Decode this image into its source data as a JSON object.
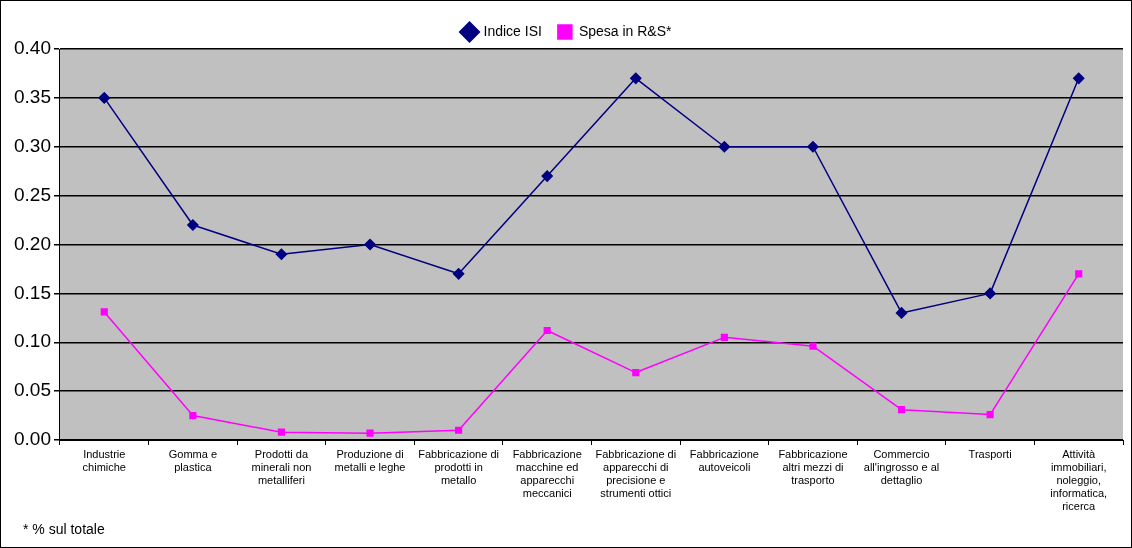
{
  "chart_data": {
    "type": "line",
    "categories": [
      "Industrie chimiche",
      "Gomma e plastica",
      "Prodotti da minerali non metalliferi",
      "Produzione di metalli e leghe",
      "Fabbricazione di prodotti in metallo",
      "Fabbricazione macchine ed apparecchi meccanici",
      "Fabbricazione di apparecchi di precisione e strumenti ottici",
      "Fabbricazione autoveicoli",
      "Fabbricazione altri mezzi di trasporto",
      "Commercio all'ingrosso e al dettaglio",
      "Trasporti",
      "Attività immobiliari, noleggio, informatica, ricerca"
    ],
    "series": [
      {
        "name": "Indice ISI",
        "color": "#000080",
        "marker": "diamond",
        "values": [
          0.35,
          0.22,
          0.19,
          0.2,
          0.17,
          0.27,
          0.37,
          0.3,
          0.3,
          0.13,
          0.15,
          0.37
        ]
      },
      {
        "name": "Spesa in R&S*",
        "color": "#ff00ff",
        "marker": "square",
        "values": [
          0.131,
          0.025,
          0.008,
          0.007,
          0.01,
          0.112,
          0.069,
          0.105,
          0.096,
          0.031,
          0.026,
          0.17
        ]
      }
    ],
    "ylim": [
      0,
      0.4
    ],
    "yticks": [
      {
        "value": 0,
        "label": "0.00"
      },
      {
        "value": 0.05,
        "label": "0.05"
      },
      {
        "value": 0.1,
        "label": "0.10"
      },
      {
        "value": 0.15,
        "label": "0.15"
      },
      {
        "value": 0.2,
        "label": "0.20"
      },
      {
        "value": 0.25,
        "label": "0.25"
      },
      {
        "value": 0.3,
        "label": "0.30"
      },
      {
        "value": 0.35,
        "label": "0.35"
      },
      {
        "value": 0.4,
        "label": "0.40"
      }
    ],
    "grid": "y",
    "legend": "top",
    "line_style": "solid",
    "annotations": [
      "* % sul totale"
    ]
  }
}
